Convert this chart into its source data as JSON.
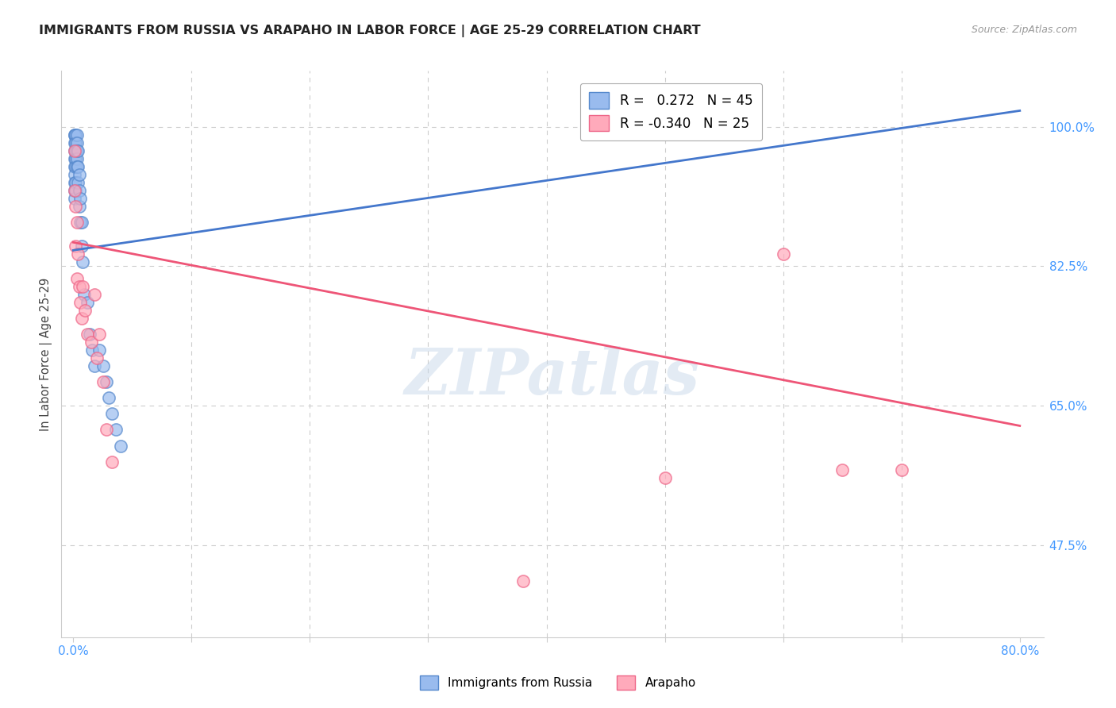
{
  "title": "IMMIGRANTS FROM RUSSIA VS ARAPAHO IN LABOR FORCE | AGE 25-29 CORRELATION CHART",
  "source": "Source: ZipAtlas.com",
  "ylabel": "In Labor Force | Age 25-29",
  "ytick_labels": [
    "100.0%",
    "82.5%",
    "65.0%",
    "47.5%"
  ],
  "ytick_values": [
    1.0,
    0.825,
    0.65,
    0.475
  ],
  "legend_R_blue": "0.272",
  "legend_N_blue": "45",
  "legend_R_pink": "-0.340",
  "legend_N_pink": "25",
  "color_blue_fill": "#99BBEE",
  "color_pink_fill": "#FFAABB",
  "color_blue_edge": "#5588CC",
  "color_pink_edge": "#EE6688",
  "color_blue_line": "#4477CC",
  "color_pink_line": "#EE5577",
  "watermark": "ZIPatlas",
  "blue_dots_x": [
    0.001,
    0.001,
    0.001,
    0.001,
    0.001,
    0.001,
    0.001,
    0.001,
    0.001,
    0.001,
    0.002,
    0.002,
    0.002,
    0.002,
    0.002,
    0.002,
    0.002,
    0.003,
    0.003,
    0.003,
    0.003,
    0.003,
    0.004,
    0.004,
    0.004,
    0.005,
    0.005,
    0.005,
    0.006,
    0.006,
    0.007,
    0.007,
    0.008,
    0.009,
    0.012,
    0.014,
    0.016,
    0.018,
    0.022,
    0.025,
    0.028,
    0.03,
    0.033,
    0.036,
    0.04
  ],
  "blue_dots_y": [
    0.99,
    0.99,
    0.98,
    0.97,
    0.96,
    0.95,
    0.94,
    0.93,
    0.92,
    0.91,
    0.99,
    0.98,
    0.97,
    0.96,
    0.95,
    0.93,
    0.92,
    0.99,
    0.98,
    0.97,
    0.96,
    0.95,
    0.97,
    0.95,
    0.93,
    0.94,
    0.92,
    0.9,
    0.91,
    0.88,
    0.88,
    0.85,
    0.83,
    0.79,
    0.78,
    0.74,
    0.72,
    0.7,
    0.72,
    0.7,
    0.68,
    0.66,
    0.64,
    0.62,
    0.6
  ],
  "pink_dots_x": [
    0.001,
    0.001,
    0.002,
    0.002,
    0.003,
    0.003,
    0.004,
    0.005,
    0.006,
    0.007,
    0.008,
    0.01,
    0.012,
    0.015,
    0.018,
    0.02,
    0.022,
    0.025,
    0.028,
    0.033,
    0.38,
    0.6,
    0.7,
    0.5,
    0.65
  ],
  "pink_dots_y": [
    0.97,
    0.92,
    0.9,
    0.85,
    0.88,
    0.81,
    0.84,
    0.8,
    0.78,
    0.76,
    0.8,
    0.77,
    0.74,
    0.73,
    0.79,
    0.71,
    0.74,
    0.68,
    0.62,
    0.58,
    0.43,
    0.84,
    0.57,
    0.56,
    0.57
  ],
  "blue_line_x": [
    0.0,
    0.8
  ],
  "blue_line_y": [
    0.845,
    1.02
  ],
  "pink_line_x": [
    0.0,
    0.8
  ],
  "pink_line_y": [
    0.855,
    0.625
  ],
  "xmin": -0.01,
  "xmax": 0.82,
  "ymin": 0.36,
  "ymax": 1.07,
  "xtick_positions": [
    0.0,
    0.1,
    0.2,
    0.3,
    0.4,
    0.5,
    0.6,
    0.7,
    0.8
  ],
  "background_color": "#FFFFFF",
  "grid_color": "#CCCCCC"
}
